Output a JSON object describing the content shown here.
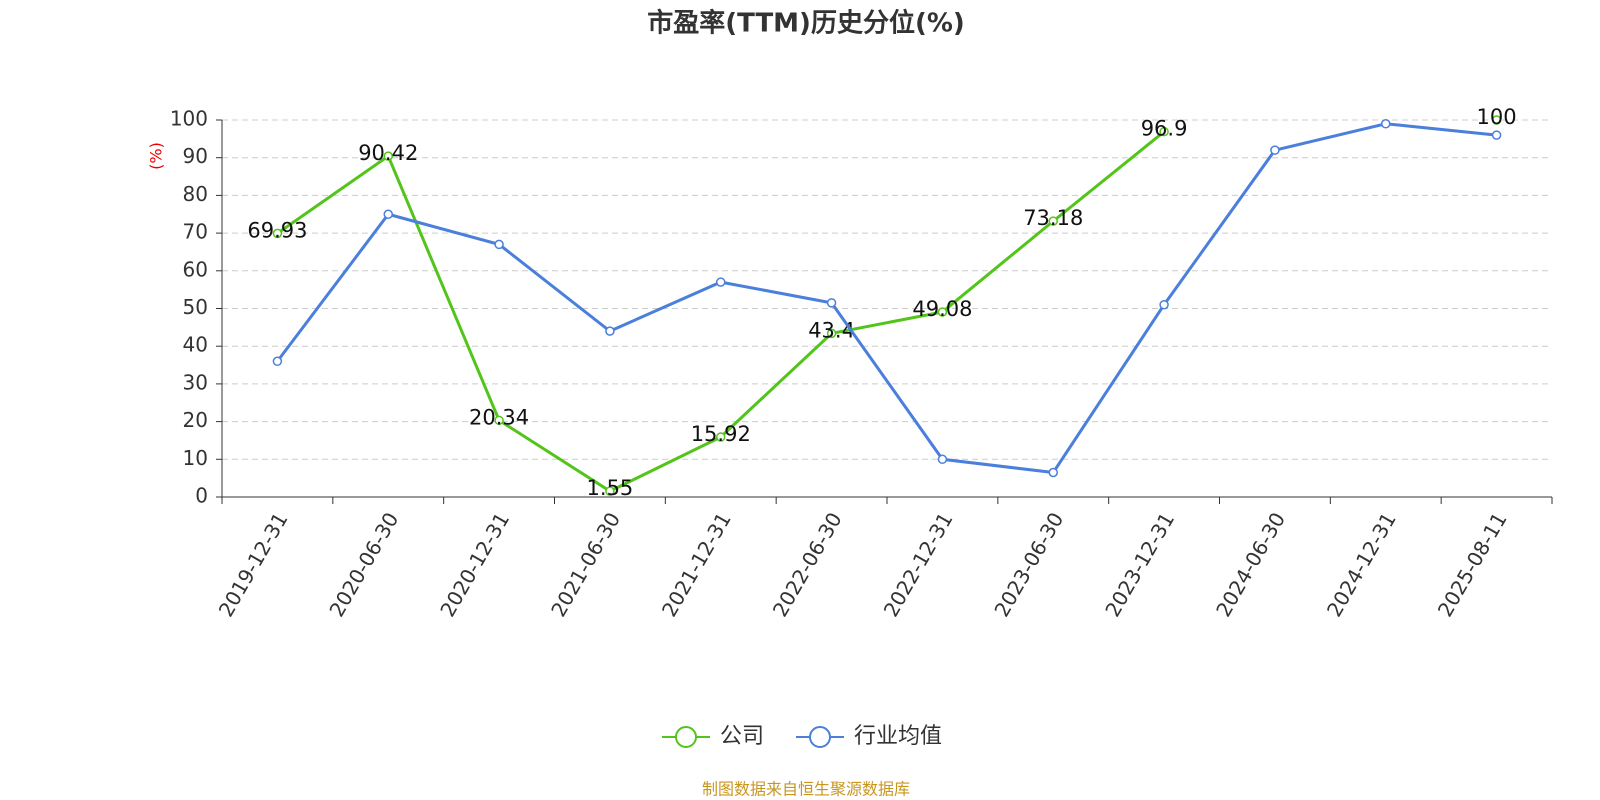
{
  "chart_data": {
    "type": "line",
    "title": "市盈率(TTM)历史分位(%)",
    "y_label": "(%)",
    "categories": [
      "2019-12-31",
      "2020-06-30",
      "2020-12-31",
      "2021-06-30",
      "2021-12-31",
      "2022-06-30",
      "2022-12-31",
      "2023-06-30",
      "2023-12-31",
      "2024-06-30",
      "2024-12-31",
      "2025-08-11"
    ],
    "series": [
      {
        "name": "公司",
        "color": "#52c41a",
        "values": [
          69.93,
          90.42,
          20.34,
          1.55,
          15.92,
          43.4,
          49.08,
          73.18,
          96.9,
          null,
          null,
          100
        ],
        "labels": true
      },
      {
        "name": "行业均值",
        "color": "#4a7fdc",
        "values": [
          36,
          75,
          67,
          44,
          57,
          51.5,
          10,
          6.5,
          51,
          92,
          99,
          96
        ],
        "labels": false
      }
    ],
    "ylim": [
      0,
      100
    ],
    "yticks": [
      0,
      10,
      20,
      30,
      40,
      50,
      60,
      70,
      80,
      90,
      100
    ],
    "grid": true,
    "source": "制图数据来自恒生聚源数据库"
  }
}
